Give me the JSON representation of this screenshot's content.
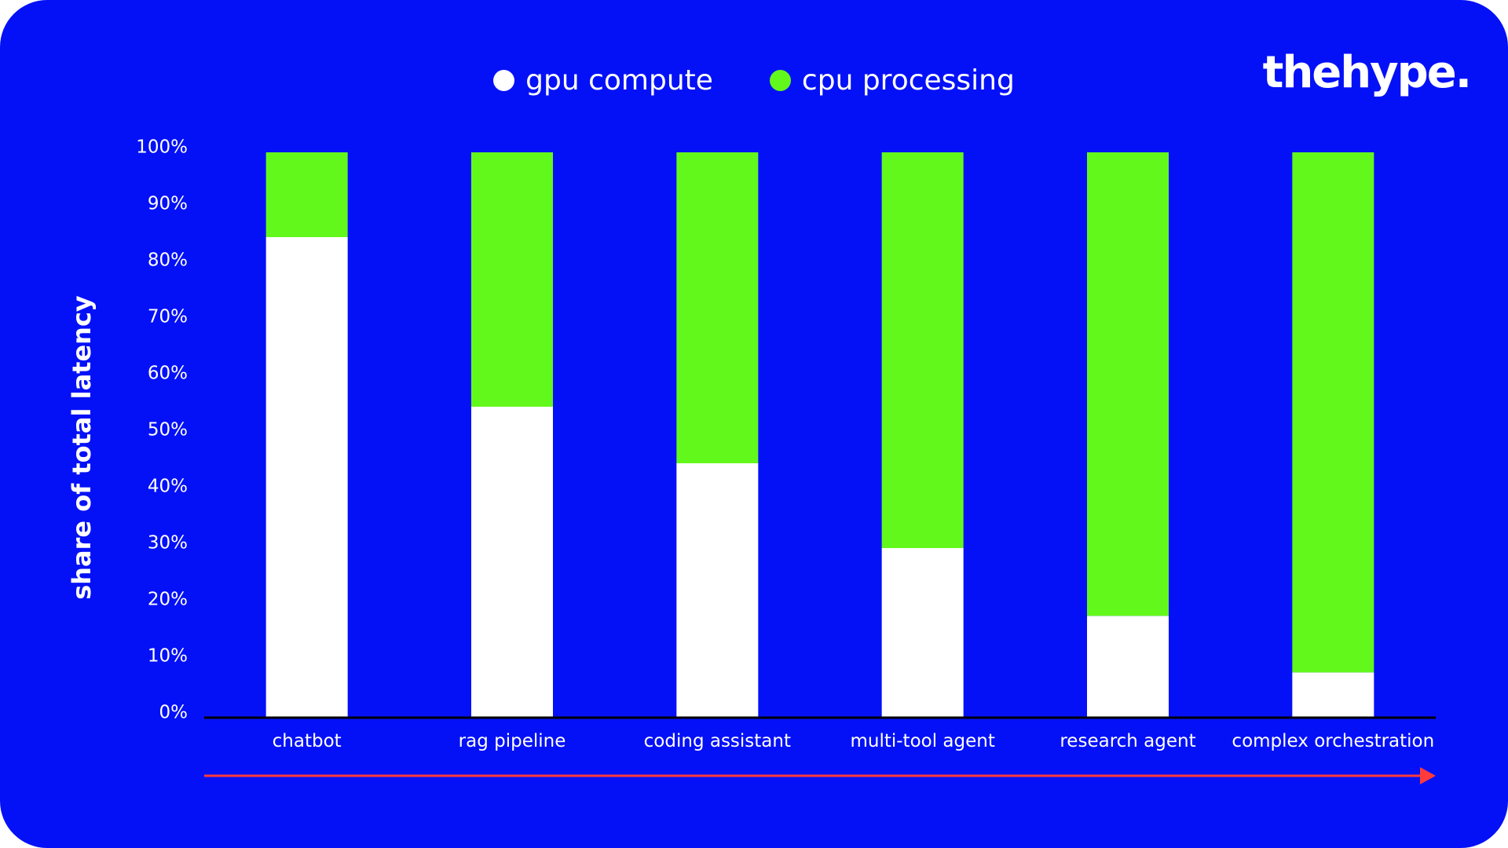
{
  "brand": {
    "logo_text": "thehype."
  },
  "colors": {
    "background": "#0411f7",
    "gpu": "#ffffff",
    "cpu": "#63f81c",
    "arrow": "#ff3b3b",
    "axis": "#000000",
    "text": "#ffffff"
  },
  "legend": [
    {
      "label": "gpu compute",
      "color": "#ffffff"
    },
    {
      "label": "cpu processing",
      "color": "#63f81c"
    }
  ],
  "chart_data": {
    "type": "bar",
    "stacked": true,
    "title": "",
    "xlabel": "",
    "ylabel": "share of total latency",
    "categories": [
      "chatbot",
      "rag pipeline",
      "coding assistant",
      "multi-tool agent",
      "research agent",
      "complex orchestration"
    ],
    "series": [
      {
        "name": "gpu compute",
        "values": [
          85,
          55,
          45,
          30,
          18,
          8
        ]
      },
      {
        "name": "cpu processing",
        "values": [
          15,
          45,
          55,
          70,
          82,
          92
        ]
      }
    ],
    "ylim": [
      0,
      100
    ],
    "yticks": [
      "0%",
      "10%",
      "20%",
      "30%",
      "40%",
      "50%",
      "60%",
      "70%",
      "80%",
      "90%",
      "100%"
    ],
    "grid": false,
    "legend_position": "top-center",
    "annotations": [
      "arrow along x-axis pointing right"
    ]
  }
}
